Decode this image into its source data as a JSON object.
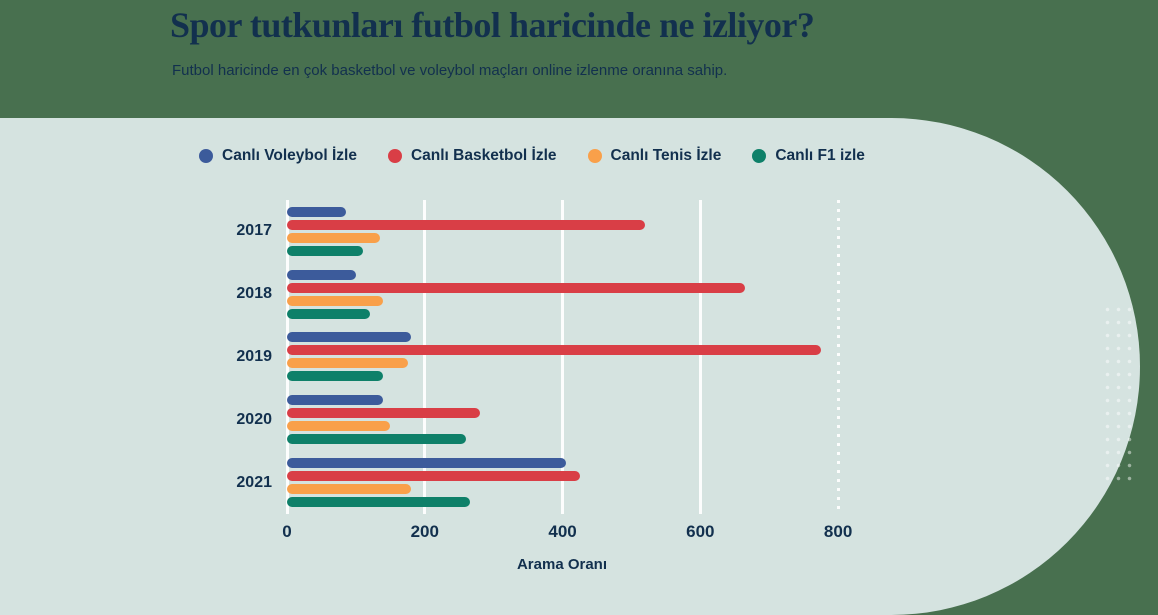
{
  "header": {
    "title": "Spor tutkunları futbol haricinde ne izliyor?",
    "subtitle": "Futbol haricinde en çok basketbol ve voleybol maçları online izlenme oranına sahip."
  },
  "theme": {
    "background": "#48704f",
    "panel": "#d5e3e0",
    "text": "#12304e",
    "gridline": "#ffffff"
  },
  "chart_data": {
    "type": "bar",
    "orientation": "horizontal",
    "title": "Spor tutkunları futbol haricinde ne izliyor?",
    "categories": [
      "2017",
      "2018",
      "2019",
      "2020",
      "2021"
    ],
    "series": [
      {
        "name": "Canlı Voleybol İzle",
        "color": "#3c5b9b",
        "values": [
          85,
          100,
          180,
          140,
          405
        ]
      },
      {
        "name": "Canlı Basketbol İzle",
        "color": "#d93e46",
        "values": [
          520,
          665,
          775,
          280,
          425
        ]
      },
      {
        "name": "Canlı Tenis İzle",
        "color": "#f9a04a",
        "values": [
          135,
          140,
          175,
          150,
          180
        ]
      },
      {
        "name": "Canlı F1 izle",
        "color": "#0e8069",
        "values": [
          110,
          120,
          140,
          260,
          265
        ]
      }
    ],
    "xlabel": "Arama Oranı",
    "x_ticks": [
      0,
      200,
      400,
      600,
      800
    ],
    "xlim": [
      0,
      900
    ],
    "grid": true,
    "legend_position": "top"
  }
}
